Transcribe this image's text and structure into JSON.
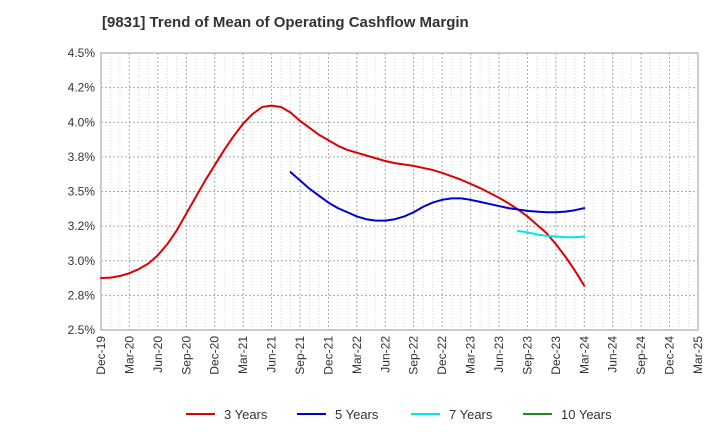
{
  "chart_data": {
    "type": "line",
    "title": "[9831]  Trend of Mean of Operating Cashflow Margin",
    "xlabel": "",
    "ylabel": "",
    "x_ticks": [
      "Dec-19",
      "Mar-20",
      "Jun-20",
      "Sep-20",
      "Dec-20",
      "Mar-21",
      "Jun-21",
      "Sep-21",
      "Dec-21",
      "Mar-22",
      "Jun-22",
      "Sep-22",
      "Dec-22",
      "Mar-23",
      "Jun-23",
      "Sep-23",
      "Dec-23",
      "Mar-24",
      "Jun-24",
      "Sep-24",
      "Dec-24",
      "Mar-25"
    ],
    "y_ticks": [
      "2.5%",
      "2.8%",
      "3.0%",
      "3.2%",
      "3.5%",
      "3.8%",
      "4.0%",
      "4.2%",
      "4.5%"
    ],
    "ylim": [
      2.5,
      4.5
    ],
    "grid": true,
    "legend_position": "bottom",
    "series": [
      {
        "name": "3 Years",
        "color": "#dd0000",
        "x": [
          "Dec-19",
          "Jan-20",
          "Feb-20",
          "Mar-20",
          "Apr-20",
          "May-20",
          "Jun-20",
          "Jul-20",
          "Aug-20",
          "Sep-20",
          "Oct-20",
          "Nov-20",
          "Dec-20",
          "Jan-21",
          "Feb-21",
          "Mar-21",
          "Apr-21",
          "May-21",
          "Jun-21",
          "Jul-21",
          "Aug-21",
          "Sep-21",
          "Oct-21",
          "Nov-21",
          "Dec-21",
          "Jan-22",
          "Feb-22",
          "Mar-22",
          "Apr-22",
          "May-22",
          "Jun-22",
          "Jul-22",
          "Aug-22",
          "Sep-22",
          "Oct-22",
          "Nov-22",
          "Dec-22",
          "Jan-23",
          "Feb-23",
          "Mar-23",
          "Apr-23",
          "May-23",
          "Jun-23",
          "Jul-23",
          "Aug-23",
          "Sep-23",
          "Oct-23",
          "Nov-23",
          "Dec-23",
          "Jan-24",
          "Feb-24",
          "Mar-24"
        ],
        "values": [
          2.875,
          2.878,
          2.89,
          2.91,
          2.94,
          2.98,
          3.04,
          3.12,
          3.22,
          3.34,
          3.46,
          3.58,
          3.69,
          3.8,
          3.9,
          3.99,
          4.06,
          4.11,
          4.12,
          4.11,
          4.07,
          4.01,
          3.96,
          3.91,
          3.87,
          3.83,
          3.8,
          3.78,
          3.76,
          3.74,
          3.72,
          3.705,
          3.695,
          3.685,
          3.67,
          3.655,
          3.635,
          3.61,
          3.585,
          3.555,
          3.525,
          3.49,
          3.455,
          3.415,
          3.37,
          3.32,
          3.26,
          3.2,
          3.12,
          3.03,
          2.93,
          2.82
        ]
      },
      {
        "name": "5 Years",
        "color": "#0000cc",
        "x": [
          "Aug-21",
          "Sep-21",
          "Oct-21",
          "Nov-21",
          "Dec-21",
          "Jan-22",
          "Feb-22",
          "Mar-22",
          "Apr-22",
          "May-22",
          "Jun-22",
          "Jul-22",
          "Aug-22",
          "Sep-22",
          "Oct-22",
          "Nov-22",
          "Dec-22",
          "Jan-23",
          "Feb-23",
          "Mar-23",
          "Apr-23",
          "May-23",
          "Jun-23",
          "Jul-23",
          "Aug-23",
          "Sep-23",
          "Oct-23",
          "Nov-23",
          "Dec-23",
          "Jan-24",
          "Feb-24",
          "Mar-24"
        ],
        "values": [
          3.64,
          3.58,
          3.52,
          3.47,
          3.42,
          3.38,
          3.35,
          3.32,
          3.3,
          3.29,
          3.29,
          3.3,
          3.32,
          3.35,
          3.39,
          3.42,
          3.44,
          3.45,
          3.45,
          3.44,
          3.425,
          3.41,
          3.395,
          3.38,
          3.37,
          3.36,
          3.355,
          3.35,
          3.35,
          3.355,
          3.365,
          3.38
        ]
      },
      {
        "name": "7 Years",
        "color": "#00e5e5",
        "x": [
          "Aug-23",
          "Sep-23",
          "Oct-23",
          "Nov-23",
          "Dec-23",
          "Jan-24",
          "Feb-24",
          "Mar-24"
        ],
        "values": [
          3.215,
          3.205,
          3.19,
          3.18,
          3.175,
          3.17,
          3.17,
          3.175
        ]
      },
      {
        "name": "10 Years",
        "color": "#228b22",
        "x": [],
        "values": []
      }
    ]
  }
}
